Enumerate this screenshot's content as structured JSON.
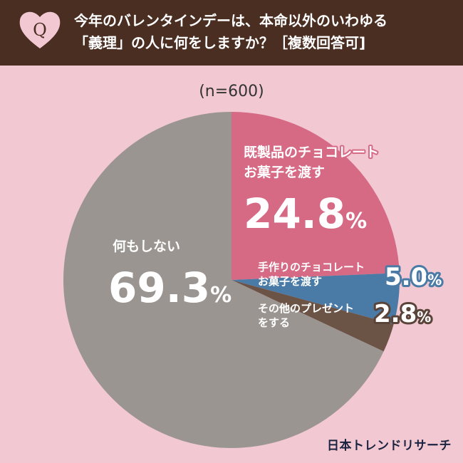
{
  "header": {
    "q_mark": "Q",
    "title_line1": "今年のバレンタインデーは、本命以外のいわゆる",
    "title_line2": "「義理」の人に何をしますか？［複数回答可]"
  },
  "sample_size": "(n=600)",
  "credit": "日本トレンドリサーチ",
  "colors": {
    "header_bg": "#4a2e22",
    "page_bg": "#f2c8d2",
    "slice_chocolate": "#d66a85",
    "slice_handmade": "#4a7ba6",
    "slice_other_present": "#6b5346",
    "slice_nothing": "#9b9591",
    "label_pink": "#d66a85",
    "label_blue": "#4a7ba6",
    "label_brown": "#5a4338"
  },
  "chart_data": {
    "type": "pie",
    "title": "今年のバレンタインデーは、本命以外のいわゆる「義理」の人に何をしますか？［複数回答可]",
    "unit": "%",
    "start_angle_deg": 0,
    "direction": "clockwise",
    "slices": [
      {
        "label_lines": [
          "既製品のチョコレート",
          "お菓子を渡す"
        ],
        "value": 24.8,
        "display": "24.8",
        "color": "#d66a85",
        "label_inside": true,
        "value_color": "#ffffff"
      },
      {
        "label_lines": [
          "手作りのチョコレート",
          "お菓子を渡す"
        ],
        "value": 5.0,
        "display": "5.0",
        "color": "#4a7ba6",
        "label_inside": false,
        "value_color": "#ffffff"
      },
      {
        "label_lines": [
          "その他のプレゼント",
          "をする"
        ],
        "value": 2.8,
        "display": "2.8",
        "color": "#6b5346",
        "label_inside": false,
        "value_color": "#ffffff"
      },
      {
        "label_lines": [
          "何もしない"
        ],
        "value": 69.3,
        "display": "69.3",
        "color": "#9b9591",
        "label_inside": true,
        "value_color": "#ffffff"
      }
    ]
  }
}
